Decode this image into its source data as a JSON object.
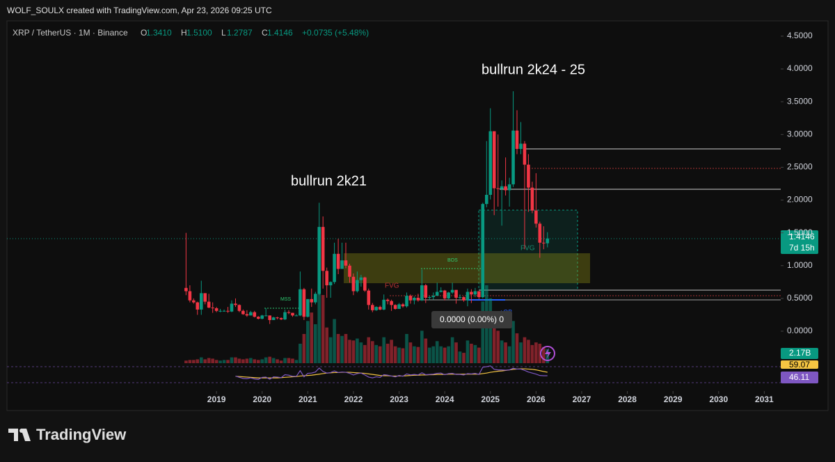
{
  "header": {
    "attribution": "WOLF_SOULX created with TradingView.com, Apr 23, 2026 09:25 UTC"
  },
  "chart_data": {
    "type": "candlestick",
    "symbol": "XRP / TetherUS · 1M · Binance",
    "ohlc_legend": [
      {
        "label": "O",
        "value": "1.3410"
      },
      {
        "label": "H",
        "value": "1.5100"
      },
      {
        "label": "L",
        "value": "1.2787"
      },
      {
        "label": "C",
        "value": "1.4146"
      }
    ],
    "change": "+0.0735 (+5.48%)",
    "up_color": "#089981",
    "down_color": "#f23645",
    "x": [
      2018.333,
      2018.417,
      2018.5,
      2018.583,
      2018.667,
      2018.75,
      2018.833,
      2018.917,
      2019,
      2019.083,
      2019.167,
      2019.25,
      2019.333,
      2019.417,
      2019.5,
      2019.583,
      2019.667,
      2019.75,
      2019.833,
      2019.917,
      2020,
      2020.083,
      2020.167,
      2020.25,
      2020.333,
      2020.417,
      2020.5,
      2020.583,
      2020.667,
      2020.75,
      2020.833,
      2020.917,
      2021,
      2021.083,
      2021.167,
      2021.25,
      2021.333,
      2021.417,
      2021.5,
      2021.583,
      2021.667,
      2021.75,
      2021.833,
      2021.917,
      2022,
      2022.083,
      2022.167,
      2022.25,
      2022.333,
      2022.417,
      2022.5,
      2022.583,
      2022.667,
      2022.75,
      2022.833,
      2022.917,
      2023,
      2023.083,
      2023.167,
      2023.25,
      2023.333,
      2023.417,
      2023.5,
      2023.583,
      2023.667,
      2023.75,
      2023.833,
      2023.917,
      2024,
      2024.083,
      2024.167,
      2024.25,
      2024.333,
      2024.417,
      2024.5,
      2024.583,
      2024.667,
      2024.75,
      2024.833,
      2024.917,
      2025,
      2025.083,
      2025.167,
      2025.25,
      2025.333,
      2025.417,
      2025.5,
      2025.583,
      2025.667,
      2025.75,
      2025.833,
      2025.917,
      2026,
      2026.083,
      2026.167,
      2026.25
    ],
    "open": [
      0.66,
      0.61,
      0.47,
      0.44,
      0.33,
      0.58,
      0.45,
      0.36,
      0.35,
      0.31,
      0.31,
      0.31,
      0.3,
      0.42,
      0.4,
      0.31,
      0.26,
      0.24,
      0.29,
      0.22,
      0.19,
      0.24,
      0.24,
      0.17,
      0.21,
      0.2,
      0.18,
      0.29,
      0.28,
      0.24,
      0.24,
      0.64,
      0.22,
      0.49,
      0.44,
      0.57,
      1.59,
      0.92,
      0.7,
      0.75,
      1.18,
      0.95,
      1.08,
      1.0,
      0.83,
      0.61,
      0.78,
      0.82,
      0.62,
      0.4,
      0.32,
      0.37,
      0.33,
      0.48,
      0.46,
      0.4,
      0.34,
      0.41,
      0.38,
      0.54,
      0.47,
      0.51,
      0.47,
      0.7,
      0.51,
      0.52,
      0.54,
      0.6,
      0.62,
      0.5,
      0.59,
      0.63,
      0.51,
      0.52,
      0.47,
      0.6,
      0.56,
      0.61,
      0.52,
      1.94,
      2.08,
      3.05,
      2.18,
      2.17,
      2.21,
      2.15,
      2.24,
      3.06,
      2.78,
      2.86,
      2.54,
      2.19,
      1.84,
      1.64,
      1.35,
      1.341
    ],
    "high": [
      1.5,
      0.7,
      0.5,
      0.45,
      0.77,
      0.58,
      0.57,
      0.44,
      0.37,
      0.34,
      0.33,
      0.37,
      0.47,
      0.5,
      0.41,
      0.33,
      0.32,
      0.31,
      0.31,
      0.23,
      0.25,
      0.35,
      0.24,
      0.22,
      0.22,
      0.21,
      0.33,
      0.32,
      0.28,
      0.26,
      0.91,
      0.66,
      0.49,
      0.65,
      0.6,
      1.96,
      1.75,
      0.97,
      0.76,
      1.35,
      1.41,
      1.35,
      1.35,
      1.03,
      0.88,
      0.91,
      0.86,
      0.83,
      0.65,
      0.43,
      0.38,
      0.39,
      0.56,
      0.5,
      0.48,
      0.41,
      0.43,
      0.43,
      0.59,
      0.56,
      0.53,
      0.57,
      0.94,
      0.72,
      0.54,
      0.59,
      0.74,
      0.67,
      0.63,
      0.6,
      0.74,
      0.63,
      0.56,
      0.53,
      0.65,
      0.64,
      0.66,
      0.61,
      1.96,
      2.9,
      3.4,
      3.05,
      3.0,
      2.3,
      2.65,
      2.34,
      3.66,
      3.37,
      3.19,
      2.9,
      2.7,
      2.28,
      2.41,
      1.67,
      1.6,
      1.51
    ],
    "low": [
      0.55,
      0.44,
      0.42,
      0.25,
      0.25,
      0.41,
      0.35,
      0.28,
      0.29,
      0.29,
      0.3,
      0.28,
      0.29,
      0.37,
      0.29,
      0.25,
      0.22,
      0.24,
      0.21,
      0.18,
      0.18,
      0.23,
      0.11,
      0.17,
      0.18,
      0.17,
      0.17,
      0.26,
      0.22,
      0.23,
      0.23,
      0.17,
      0.21,
      0.37,
      0.41,
      0.55,
      0.65,
      0.51,
      0.51,
      0.72,
      0.87,
      0.95,
      0.96,
      0.74,
      0.55,
      0.59,
      0.68,
      0.6,
      0.33,
      0.29,
      0.31,
      0.32,
      0.32,
      0.41,
      0.31,
      0.33,
      0.34,
      0.36,
      0.36,
      0.42,
      0.41,
      0.45,
      0.46,
      0.43,
      0.47,
      0.48,
      0.54,
      0.59,
      0.47,
      0.49,
      0.57,
      0.42,
      0.49,
      0.45,
      0.38,
      0.43,
      0.52,
      0.49,
      0.5,
      1.89,
      2.01,
      1.77,
      1.9,
      1.61,
      2.07,
      1.9,
      2.2,
      2.7,
      2.7,
      1.25,
      1.82,
      1.8,
      1.58,
      1.12,
      1.25,
      1.2787
    ],
    "close": [
      0.61,
      0.47,
      0.44,
      0.33,
      0.58,
      0.45,
      0.36,
      0.35,
      0.31,
      0.31,
      0.31,
      0.3,
      0.42,
      0.4,
      0.31,
      0.26,
      0.24,
      0.29,
      0.22,
      0.19,
      0.24,
      0.24,
      0.17,
      0.21,
      0.2,
      0.18,
      0.29,
      0.28,
      0.24,
      0.24,
      0.64,
      0.22,
      0.49,
      0.44,
      0.57,
      1.59,
      0.92,
      0.7,
      0.75,
      1.18,
      0.95,
      1.08,
      1.0,
      0.83,
      0.61,
      0.78,
      0.82,
      0.62,
      0.4,
      0.32,
      0.37,
      0.33,
      0.48,
      0.46,
      0.4,
      0.34,
      0.41,
      0.38,
      0.54,
      0.47,
      0.51,
      0.47,
      0.7,
      0.51,
      0.52,
      0.54,
      0.6,
      0.62,
      0.5,
      0.59,
      0.63,
      0.51,
      0.52,
      0.47,
      0.6,
      0.56,
      0.61,
      0.52,
      1.94,
      2.08,
      3.05,
      2.18,
      2.17,
      2.21,
      2.15,
      2.24,
      3.06,
      2.78,
      2.86,
      2.54,
      2.19,
      1.84,
      1.64,
      1.35,
      1.34,
      1.4146
    ],
    "volume": [
      0.4,
      0.5,
      0.5,
      0.6,
      0.9,
      0.6,
      0.8,
      0.7,
      0.5,
      0.4,
      0.5,
      0.5,
      0.9,
      0.9,
      0.7,
      0.6,
      0.7,
      0.8,
      0.6,
      0.5,
      0.6,
      0.9,
      1.0,
      0.8,
      0.6,
      0.4,
      0.8,
      0.8,
      0.7,
      0.5,
      3.0,
      4.5,
      6.5,
      7.8,
      6.0,
      12.0,
      10.5,
      5.5,
      4.0,
      6.8,
      4.5,
      4.2,
      4.5,
      3.6,
      3.5,
      3.8,
      3.2,
      2.8,
      4.0,
      3.4,
      2.8,
      2.6,
      4.0,
      3.0,
      3.6,
      2.6,
      2.4,
      2.3,
      4.5,
      3.2,
      2.6,
      2.5,
      5.0,
      3.8,
      2.4,
      2.6,
      3.4,
      2.6,
      2.4,
      2.6,
      4.0,
      3.2,
      1.8,
      1.6,
      3.5,
      3.0,
      2.8,
      2.4,
      9.5,
      12.0,
      10.0,
      6.5,
      5.0,
      3.5,
      3.2,
      2.6,
      6.5,
      4.6,
      3.2,
      4.0,
      3.6,
      2.8,
      3.2,
      3.0,
      2.5,
      2.17
    ],
    "volume_label": "2.17B",
    "rsi": [
      null,
      null,
      null,
      null,
      null,
      null,
      null,
      null,
      null,
      null,
      null,
      null,
      null,
      45,
      40,
      36,
      35,
      38,
      34,
      32,
      40,
      41,
      33,
      42,
      41,
      39,
      50,
      48,
      44,
      44,
      65,
      42,
      55,
      56,
      60,
      75,
      62,
      56,
      58,
      64,
      58,
      60,
      59,
      55,
      49,
      54,
      56,
      49,
      41,
      38,
      42,
      40,
      50,
      48,
      45,
      42,
      47,
      44,
      53,
      49,
      51,
      49,
      57,
      50,
      51,
      52,
      55,
      56,
      50,
      54,
      55,
      51,
      51,
      49,
      54,
      53,
      55,
      51,
      78,
      80,
      83,
      70,
      68,
      68,
      67,
      68,
      74,
      71,
      71,
      66,
      60,
      56,
      52,
      47,
      46,
      46.11
    ],
    "rsi_ma": [
      null,
      null,
      null,
      null,
      null,
      null,
      null,
      null,
      null,
      null,
      null,
      null,
      null,
      44,
      43,
      42,
      41,
      40,
      39,
      38,
      38,
      38,
      38,
      38,
      38,
      39,
      40,
      41,
      42,
      43,
      45,
      46,
      47,
      48,
      50,
      52,
      54,
      56,
      57,
      58,
      58,
      59,
      59,
      59,
      58,
      57,
      56,
      55,
      53,
      51,
      49,
      47,
      46,
      46,
      45,
      45,
      45,
      45,
      46,
      47,
      48,
      48,
      49,
      49,
      50,
      50,
      51,
      51,
      51,
      52,
      52,
      52,
      52,
      52,
      52,
      52,
      52,
      52,
      54,
      56,
      59,
      61,
      63,
      64,
      66,
      68,
      70,
      71,
      72,
      72,
      71,
      70,
      68,
      65,
      62,
      59.07
    ],
    "rsi_color": "#7e57c2",
    "rsi_ma_color": "#f5c542",
    "xlim": [
      2014.41,
      2031.36
    ],
    "xticks": [
      2019,
      2020,
      2021,
      2022,
      2023,
      2024,
      2025,
      2026,
      2027,
      2028,
      2029,
      2030,
      2031
    ],
    "ylim": [
      -0.488,
      4.733
    ],
    "yticks": [
      {
        "value": 0,
        "label": "0.0000"
      },
      {
        "value": 0.5,
        "label": "0.5000"
      },
      {
        "value": 1,
        "label": "1.0000"
      },
      {
        "value": 1.5,
        "label": "1.5000"
      },
      {
        "value": 2,
        "label": "2.0000"
      },
      {
        "value": 2.5,
        "label": "2.5000"
      },
      {
        "value": 3,
        "label": "3.0000"
      },
      {
        "value": 3.5,
        "label": "3.5000"
      },
      {
        "value": 4,
        "label": "4.0000"
      },
      {
        "value": 4.5,
        "label": "4.5000"
      }
    ],
    "grid": false,
    "annotations": [
      "bullrun 2k21",
      "bullrun 2k24 - 25",
      "MSS",
      "BOS",
      "FVG",
      "FVG",
      "+OB"
    ],
    "last_price_label": "1.4146",
    "countdown": "7d 15h",
    "crosshair_label": "0.0000 (0.00%) 0"
  },
  "footer": {
    "logo": "TradingView"
  }
}
